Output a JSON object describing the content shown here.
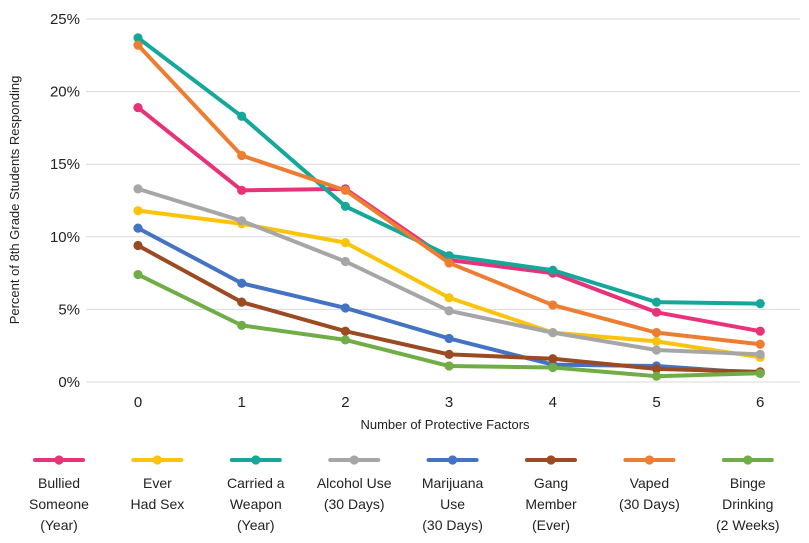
{
  "chart_data": {
    "type": "line",
    "xlabel": "Number of Protective Factors",
    "ylabel": "Percent of 8th Grade Students Responding",
    "x": [
      0,
      1,
      2,
      3,
      4,
      5,
      6
    ],
    "x_tick_labels": [
      "0",
      "1",
      "2",
      "3",
      "4",
      "5",
      "6"
    ],
    "y_tick_labels": [
      "0%",
      "5%",
      "10%",
      "15%",
      "20%",
      "25%"
    ],
    "ylim": [
      0,
      25
    ],
    "grid": "horizontal",
    "legend_position": "bottom",
    "series": [
      {
        "name": "Bullied Someone (Year)",
        "label_lines": [
          "Bullied",
          "Someone",
          "(Year)"
        ],
        "color": "#e8337a",
        "values": [
          18.9,
          13.2,
          13.3,
          8.4,
          7.5,
          4.8,
          3.5
        ]
      },
      {
        "name": "Ever Had Sex",
        "label_lines": [
          "Ever",
          "Had Sex"
        ],
        "color": "#fcc30b",
        "values": [
          11.8,
          10.9,
          9.6,
          5.8,
          3.4,
          2.8,
          1.7
        ]
      },
      {
        "name": "Carried a Weapon (Year)",
        "label_lines": [
          "Carried a",
          "Weapon",
          "(Year)"
        ],
        "color": "#15a89a",
        "values": [
          23.7,
          18.3,
          12.1,
          8.7,
          7.7,
          5.5,
          5.4
        ]
      },
      {
        "name": "Alcohol Use (30 Days)",
        "label_lines": [
          "Alcohol Use",
          "(30 Days)"
        ],
        "color": "#a6a6a6",
        "values": [
          13.3,
          11.1,
          8.3,
          4.9,
          3.4,
          2.2,
          1.9
        ]
      },
      {
        "name": "Marijuana Use (30 Days)",
        "label_lines": [
          "Marijuana",
          "Use",
          "(30 Days)"
        ],
        "color": "#4472c4",
        "values": [
          10.6,
          6.8,
          5.1,
          3.0,
          1.2,
          1.1,
          0.6
        ]
      },
      {
        "name": "Gang Member (Ever)",
        "label_lines": [
          "Gang",
          "Member",
          "(Ever)"
        ],
        "color": "#9c4a22",
        "values": [
          9.4,
          5.5,
          3.5,
          1.9,
          1.6,
          0.9,
          0.7
        ]
      },
      {
        "name": "Vaped (30 Days)",
        "label_lines": [
          "Vaped",
          "(30 Days)"
        ],
        "color": "#ed7d31",
        "values": [
          23.2,
          15.6,
          13.2,
          8.2,
          5.3,
          3.4,
          2.6
        ]
      },
      {
        "name": "Binge Drinking (2 Weeks)",
        "label_lines": [
          "Binge",
          "Drinking",
          "(2 Weeks)"
        ],
        "color": "#70ad47",
        "values": [
          7.4,
          3.9,
          2.9,
          1.1,
          1.0,
          0.4,
          0.6
        ]
      }
    ]
  }
}
